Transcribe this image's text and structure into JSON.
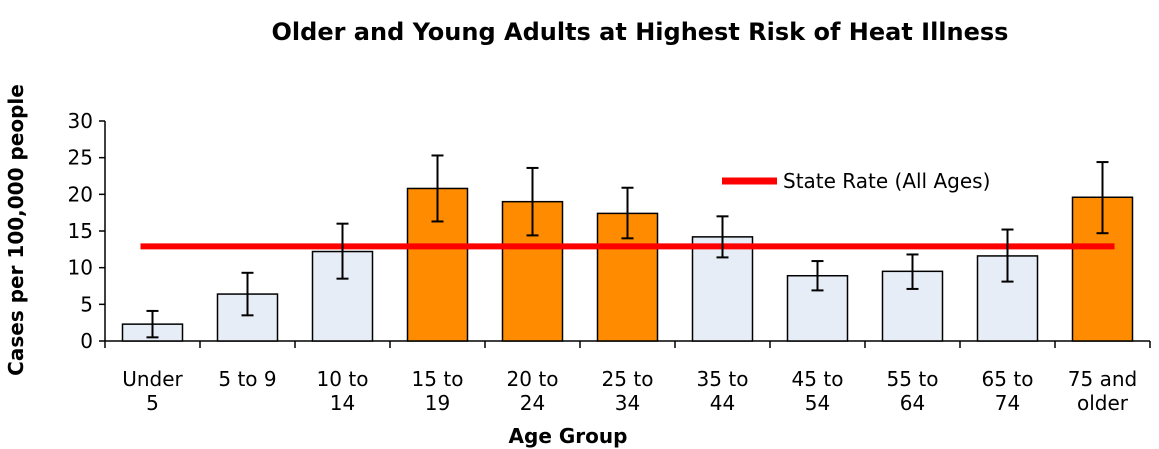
{
  "chart_data": {
    "type": "bar",
    "title": "Older and Young Adults at Highest Risk of Heat Illness",
    "xlabel": "Age Group",
    "ylabel": "Cases per 100,000 people",
    "ylim": [
      0,
      30
    ],
    "yticks": [
      "0",
      "5",
      "10",
      "15",
      "20",
      "25",
      "30"
    ],
    "grid": false,
    "categories": [
      [
        "Under",
        "5"
      ],
      [
        "5 to 9",
        ""
      ],
      [
        "10 to",
        "14"
      ],
      [
        "15 to",
        "19"
      ],
      [
        "20 to",
        "24"
      ],
      [
        "25 to",
        "34"
      ],
      [
        "35 to",
        "44"
      ],
      [
        "45 to",
        "54"
      ],
      [
        "55 to",
        "64"
      ],
      [
        "65 to",
        "74"
      ],
      [
        "75 and",
        "older"
      ]
    ],
    "values": [
      2.3,
      6.4,
      12.2,
      20.8,
      19.0,
      17.4,
      14.2,
      8.9,
      9.5,
      11.6,
      19.6
    ],
    "error_low": [
      0.5,
      3.5,
      8.5,
      16.3,
      14.4,
      14.0,
      11.4,
      6.9,
      7.1,
      8.1,
      14.7
    ],
    "error_high": [
      4.1,
      9.3,
      16.0,
      25.3,
      23.6,
      20.9,
      17.0,
      10.9,
      11.8,
      15.2,
      24.4
    ],
    "highlighted": [
      false,
      false,
      false,
      true,
      true,
      true,
      false,
      false,
      false,
      false,
      true
    ],
    "reference_line": {
      "label": "State Rate (All Ages)",
      "value": 12.9
    },
    "legend_position": "top-right",
    "colors": {
      "bar_default": "#e6edf6",
      "bar_highlight": "#ff8c00",
      "reference_line": "#ff0000",
      "bar_outline": "#000000"
    }
  }
}
